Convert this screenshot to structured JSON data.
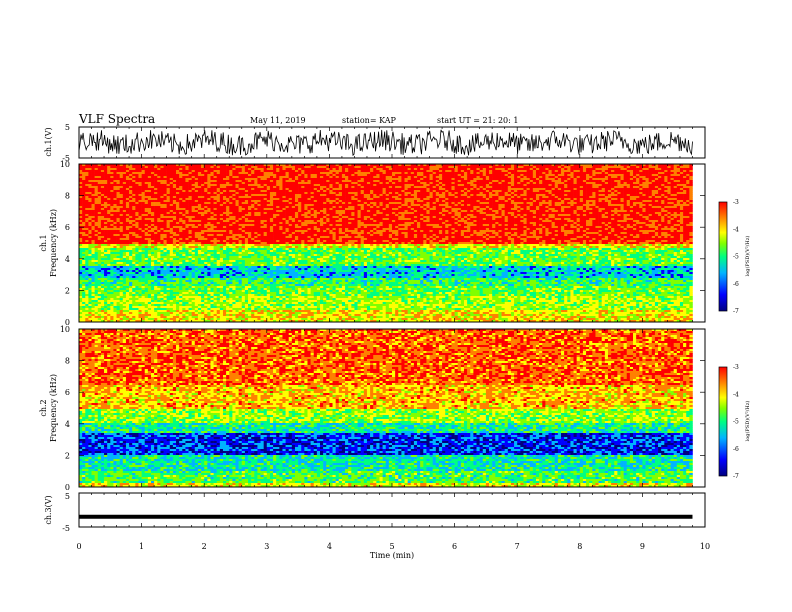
{
  "header": {
    "title": "VLF Spectra",
    "date": "May 11, 2019",
    "station": "station= KAP",
    "start": "start  UT =   21: 20: 1"
  },
  "chart_data": [
    {
      "type": "line",
      "panel": "ch1-waveform",
      "ylabel": "ch.1(V)",
      "ylim": [
        -5,
        5
      ],
      "yticks": [
        "5",
        "-5"
      ],
      "xlim": [
        0,
        10
      ],
      "note": "noisy waveform around 0 V spanning about 0 to 9.8 min"
    },
    {
      "type": "heatmap",
      "panel": "ch1-spectrogram",
      "ylabel_line1": "ch.1",
      "ylabel_line2": "Frequency (kHz)",
      "ylim": [
        0,
        10
      ],
      "yticks": [
        "0",
        "2",
        "4",
        "6",
        "8",
        "10"
      ],
      "xlim": [
        0,
        10
      ],
      "colorbar": {
        "label": "log(PSD)(V²/Hz)",
        "range": [
          -7,
          -3
        ],
        "ticks": [
          "-3",
          "-4",
          "-5",
          "-6",
          "-7"
        ]
      },
      "bands_khz": [
        {
          "from": 5.0,
          "to": 10.0,
          "level": -3.3
        },
        {
          "from": 4.7,
          "to": 5.0,
          "level": -4.3
        },
        {
          "from": 3.6,
          "to": 4.7,
          "level": -4.9
        },
        {
          "from": 2.8,
          "to": 3.6,
          "level": -5.6
        },
        {
          "from": 2.3,
          "to": 2.8,
          "level": -5.1
        },
        {
          "from": 1.6,
          "to": 2.3,
          "level": -4.9
        },
        {
          "from": 0.8,
          "to": 1.6,
          "level": -4.6
        },
        {
          "from": 0.0,
          "to": 0.8,
          "level": -4.2
        }
      ]
    },
    {
      "type": "heatmap",
      "panel": "ch2-spectrogram",
      "ylabel_line1": "ch.2",
      "ylabel_line2": "Frequency (kHz)",
      "ylim": [
        0,
        10
      ],
      "yticks": [
        "0",
        "2",
        "4",
        "6",
        "8",
        "10"
      ],
      "xlim": [
        0,
        10
      ],
      "colorbar": {
        "label": "log(PSD)(V²/Hz)",
        "range": [
          -7,
          -3
        ],
        "ticks": [
          "-3",
          "-4",
          "-5",
          "-6",
          "-7"
        ]
      },
      "bands_khz": [
        {
          "from": 6.5,
          "to": 10.0,
          "level": -3.6
        },
        {
          "from": 5.0,
          "to": 6.5,
          "level": -4.0
        },
        {
          "from": 4.0,
          "to": 5.0,
          "level": -4.7
        },
        {
          "from": 3.4,
          "to": 4.0,
          "level": -5.3
        },
        {
          "from": 2.0,
          "to": 3.4,
          "level": -6.2
        },
        {
          "from": 1.0,
          "to": 2.0,
          "level": -5.4
        },
        {
          "from": 0.3,
          "to": 1.0,
          "level": -5.0
        },
        {
          "from": 0.0,
          "to": 0.3,
          "level": -4.3
        }
      ]
    },
    {
      "type": "line",
      "panel": "ch3-waveform",
      "ylabel": "ch.3(V)",
      "ylim": [
        -5,
        5
      ],
      "yticks": [
        "5",
        "-5"
      ],
      "xlim": [
        0,
        10
      ],
      "xlabel": "Time (min)",
      "xticks": [
        "0",
        "1",
        "2",
        "3",
        "4",
        "5",
        "6",
        "7",
        "8",
        "9",
        "10"
      ],
      "note": "flat thick line at about -2 V spanning 0 to 9.8 min"
    }
  ],
  "colors": {
    "axis": "#000000",
    "colormap": [
      "#000080",
      "#0000ff",
      "#00b4ff",
      "#00ff80",
      "#80ff00",
      "#ffff00",
      "#ff8000",
      "#ff0000"
    ]
  }
}
